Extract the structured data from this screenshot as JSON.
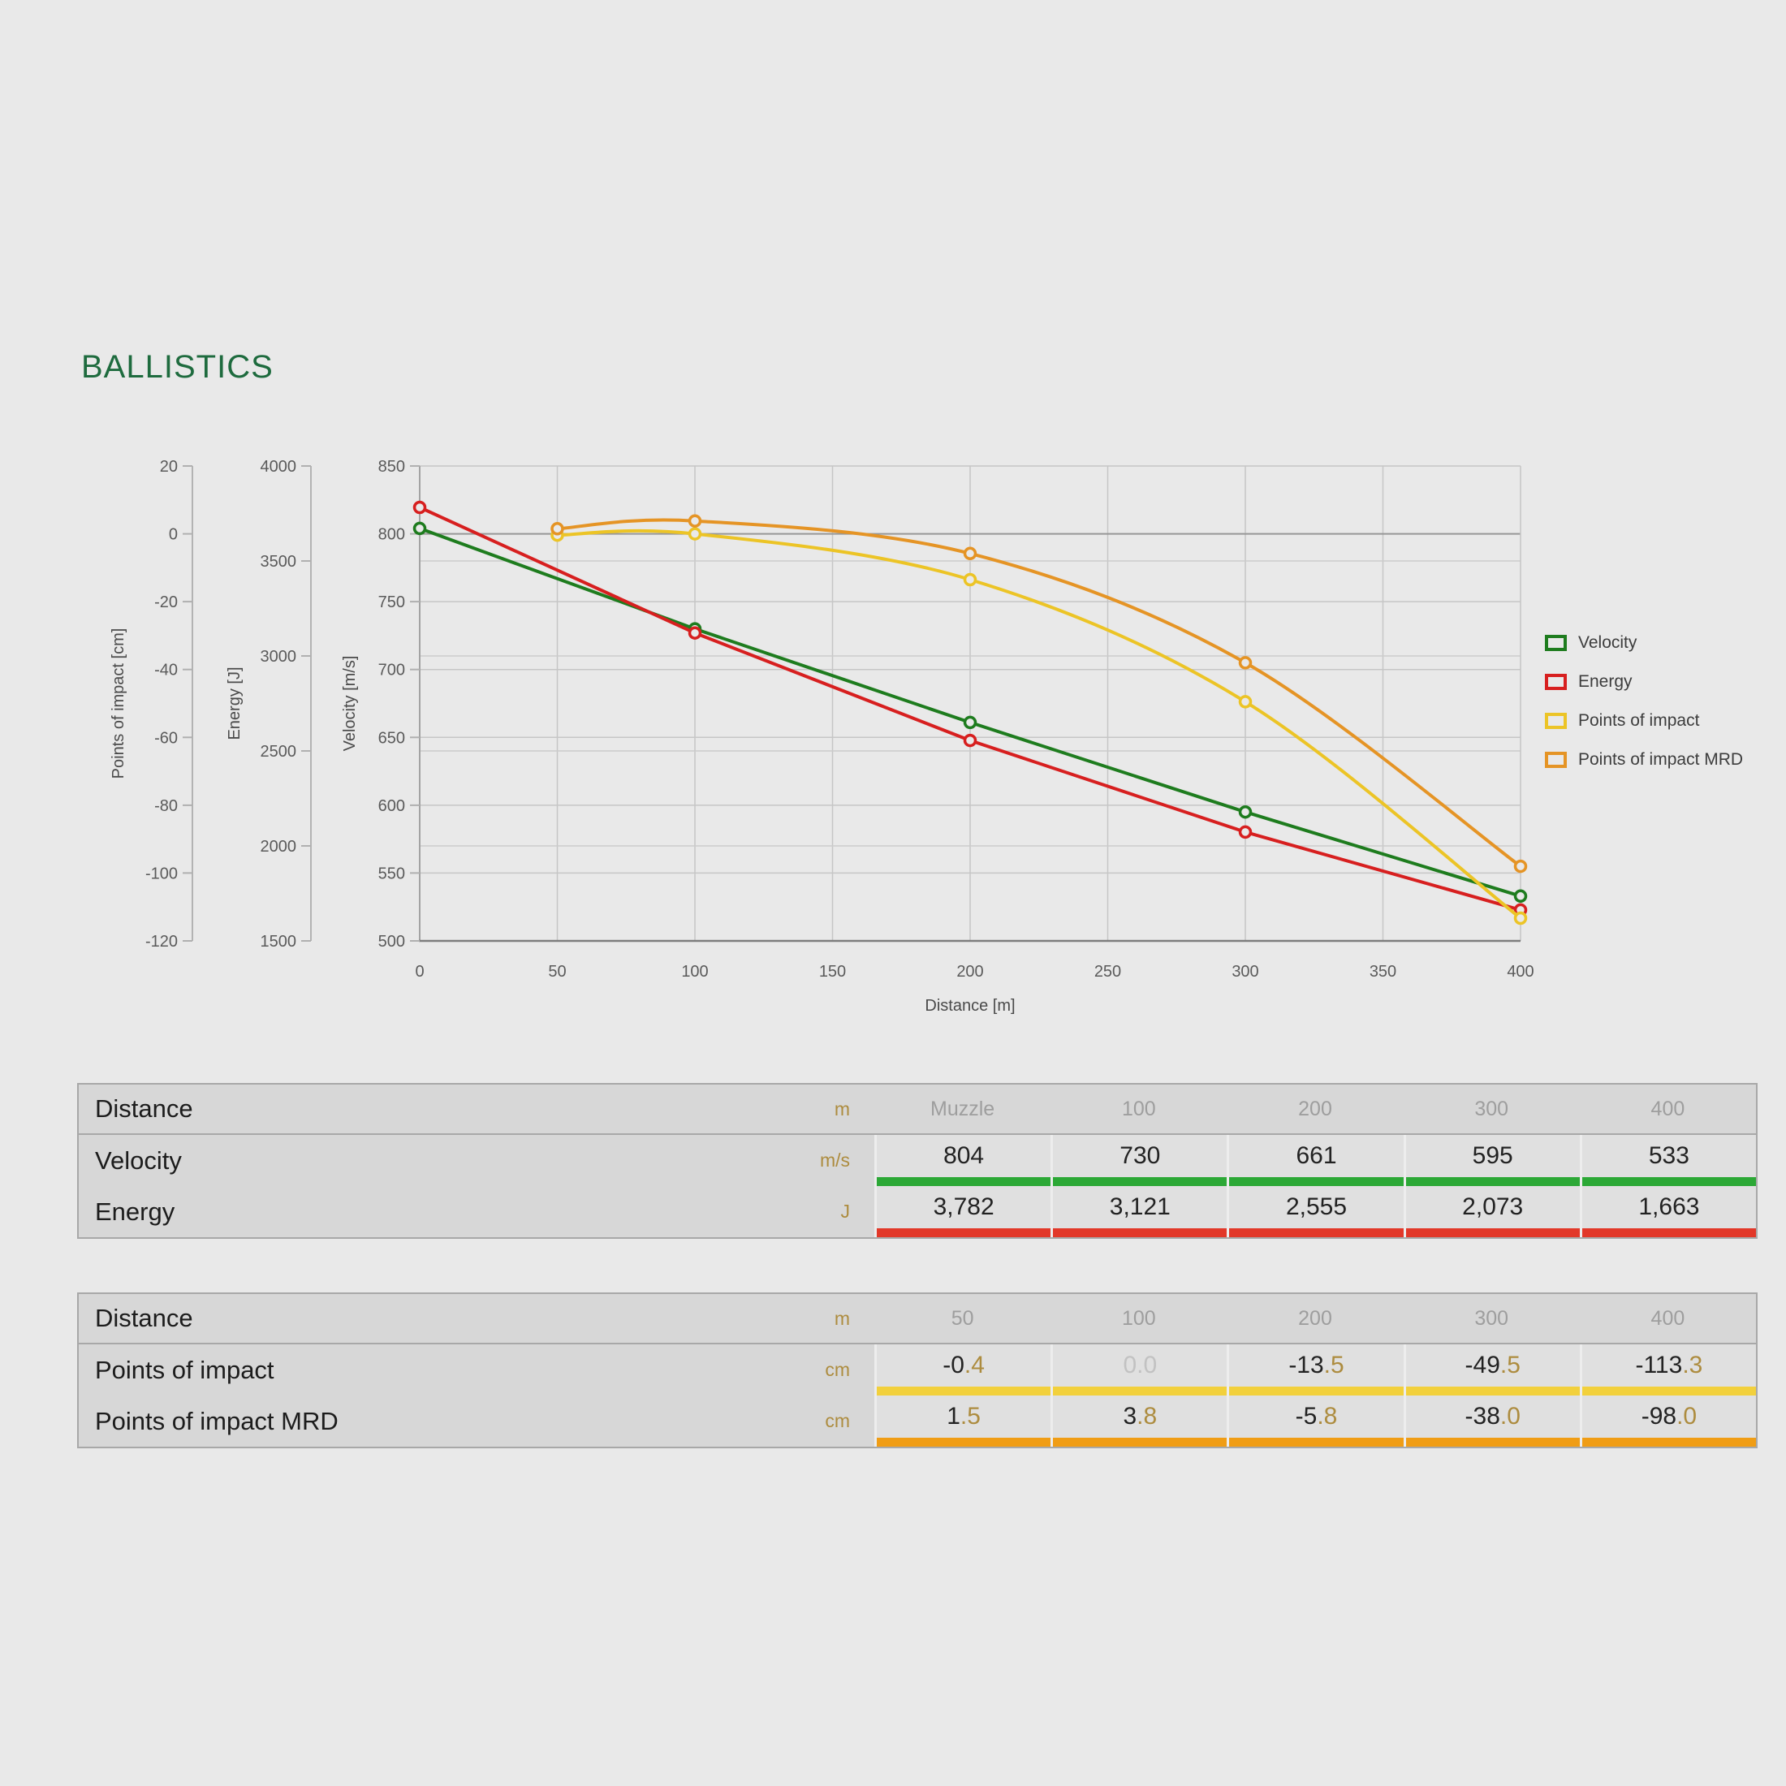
{
  "title": "BALLISTICS",
  "colors": {
    "accent_green_title": "#1e6b3e",
    "unit_text": "#ad8c3f",
    "column_header_text": "#9e9e9e",
    "muted_value": "#c2c2c2",
    "series_velocity": "#1e7c1e",
    "series_energy": "#d71f1f",
    "series_poi": "#ecc426",
    "series_poi_mrd": "#e59425",
    "bar_velocity": "#2ca836",
    "bar_energy": "#e23829",
    "bar_poi": "#f2d03c",
    "bar_poi_mrd": "#f09d15"
  },
  "chart_data": {
    "type": "line",
    "xlabel": "Distance [m]",
    "x_ticks": [
      0,
      50,
      100,
      150,
      200,
      250,
      300,
      350,
      400
    ],
    "x_range": [
      0,
      400
    ],
    "grid": true,
    "legend_position": "right",
    "axes": [
      {
        "id": "poi",
        "label": "Points of impact [cm]",
        "min": -120,
        "max": 20,
        "ticks": [
          20,
          0,
          -20,
          -40,
          -60,
          -80,
          -100,
          -120
        ]
      },
      {
        "id": "energy",
        "label": "Energy [J]",
        "min": 1500,
        "max": 4000,
        "ticks": [
          4000,
          3500,
          3000,
          2500,
          2000,
          1500
        ]
      },
      {
        "id": "velocity",
        "label": "Velocity [m/s]",
        "min": 500,
        "max": 850,
        "ticks": [
          850,
          800,
          750,
          700,
          650,
          600,
          550,
          500
        ]
      }
    ],
    "series": [
      {
        "name": "Velocity",
        "axis": "velocity",
        "color": "#1e7c1e",
        "smooth": false,
        "x": [
          0,
          100,
          200,
          300,
          400
        ],
        "y": [
          804,
          730,
          661,
          595,
          533
        ]
      },
      {
        "name": "Energy",
        "axis": "energy",
        "color": "#d71f1f",
        "smooth": false,
        "x": [
          0,
          100,
          200,
          300,
          400
        ],
        "y": [
          3782,
          3121,
          2555,
          2073,
          1663
        ]
      },
      {
        "name": "Points of impact",
        "axis": "poi",
        "color": "#ecc426",
        "smooth": true,
        "x": [
          50,
          100,
          200,
          300,
          400
        ],
        "y": [
          -0.4,
          0.0,
          -13.5,
          -49.5,
          -113.3
        ]
      },
      {
        "name": "Points of impact MRD",
        "axis": "poi",
        "color": "#e59425",
        "smooth": true,
        "x": [
          50,
          100,
          200,
          300,
          400
        ],
        "y": [
          1.5,
          3.8,
          -5.8,
          -38.0,
          -98.0
        ]
      }
    ]
  },
  "legend": [
    {
      "label": "Velocity",
      "color": "#1e7c1e"
    },
    {
      "label": "Energy",
      "color": "#d71f1f"
    },
    {
      "label": "Points of impact",
      "color": "#ecc426"
    },
    {
      "label": "Points of impact MRD",
      "color": "#e59425"
    }
  ],
  "tables": [
    {
      "name": "velocity-energy-table",
      "header": {
        "label": "Distance",
        "unit": "m",
        "columns": [
          "Muzzle",
          "100",
          "200",
          "300",
          "400"
        ]
      },
      "rows": [
        {
          "label": "Velocity",
          "unit": "m/s",
          "bar": "#2ca836",
          "decimal_style": false,
          "values": [
            "804",
            "730",
            "661",
            "595",
            "533"
          ]
        },
        {
          "label": "Energy",
          "unit": "J",
          "bar": "#e23829",
          "decimal_style": false,
          "values": [
            "3,782",
            "3,121",
            "2,555",
            "2,073",
            "1,663"
          ]
        }
      ]
    },
    {
      "name": "points-of-impact-table",
      "header": {
        "label": "Distance",
        "unit": "m",
        "columns": [
          "50",
          "100",
          "200",
          "300",
          "400"
        ]
      },
      "rows": [
        {
          "label": "Points of impact",
          "unit": "cm",
          "bar": "#f2d03c",
          "decimal_style": true,
          "values": [
            "-0.4",
            "0.0",
            "-13.5",
            "-49.5",
            "-113.3"
          ]
        },
        {
          "label": "Points of impact MRD",
          "unit": "cm",
          "bar": "#f09d15",
          "decimal_style": true,
          "values": [
            "1.5",
            "3.8",
            "-5.8",
            "-38.0",
            "-98.0"
          ]
        }
      ]
    }
  ]
}
